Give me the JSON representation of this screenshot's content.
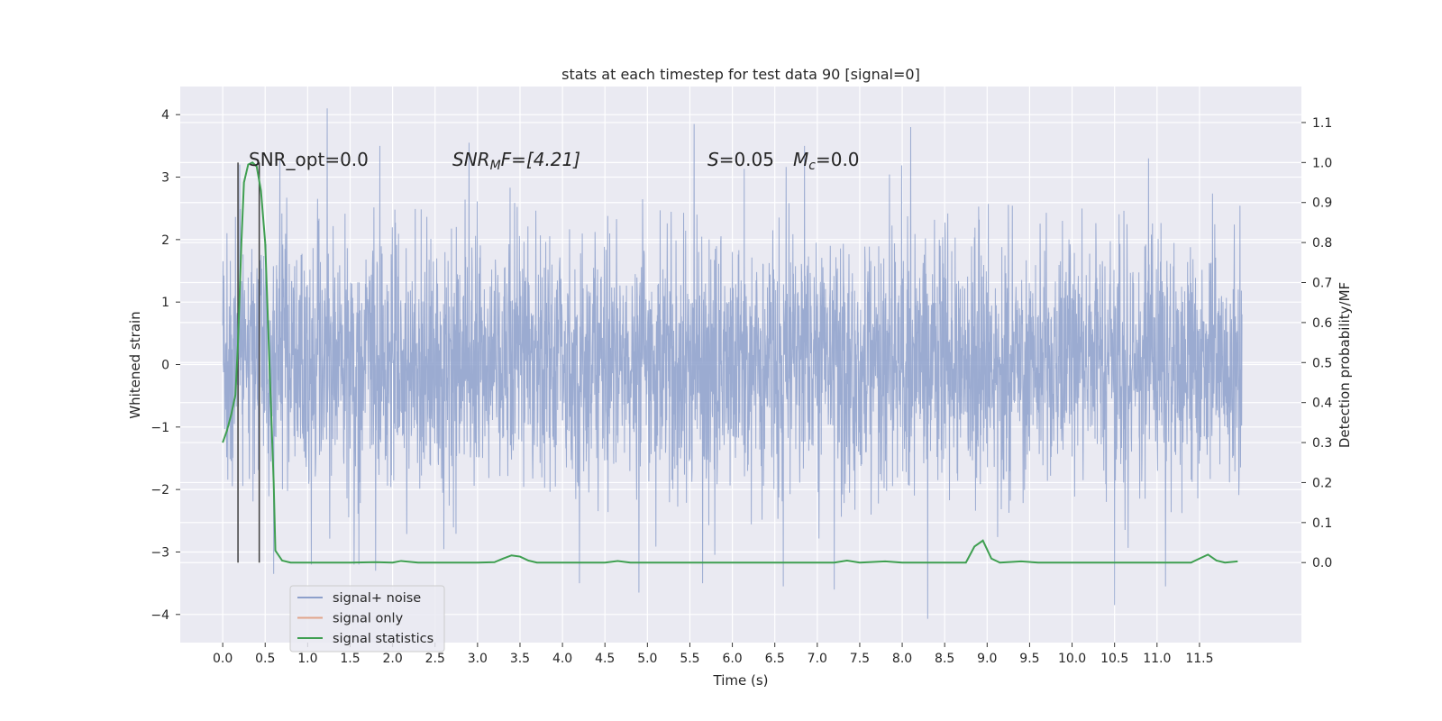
{
  "chart_data": {
    "type": "line",
    "title": "stats at each timestep for test data 90 [signal=0]",
    "xlabel": "Time (s)",
    "ylabel": "Whitened strain",
    "y2label": "Detection probability/MF",
    "xlim": [
      -0.5,
      12.7
    ],
    "ylim": [
      -4.45,
      4.45
    ],
    "y2lim": [
      -0.2,
      1.19
    ],
    "x_ticks": [
      "0.0",
      "0.5",
      "1.0",
      "1.5",
      "2.0",
      "2.5",
      "3.0",
      "3.5",
      "4.0",
      "4.5",
      "5.0",
      "5.5",
      "6.0",
      "6.5",
      "7.0",
      "7.5",
      "8.0",
      "8.5",
      "9.0",
      "9.5",
      "10.0",
      "10.5",
      "11.0",
      "11.5"
    ],
    "y_ticks": [
      "4",
      "3",
      "2",
      "1",
      "0",
      "−1",
      "−2",
      "−3",
      "−4"
    ],
    "y2_ticks": [
      "1.1",
      "1.0",
      "0.9",
      "0.8",
      "0.7",
      "0.6",
      "0.5",
      "0.4",
      "0.3",
      "0.2",
      "0.1",
      "0.0"
    ],
    "grid": true,
    "legend_position": "lower-left",
    "legend": [
      {
        "label": "signal+ noise",
        "color": "#8da0cb"
      },
      {
        "label": "signal only",
        "color": "#e1a48a"
      },
      {
        "label": "signal statistics",
        "color": "#3f9f51"
      }
    ],
    "annotations": {
      "snr_opt": "SNR_opt=0.0",
      "snr_mf_prefix": "SNR",
      "snr_mf_sub": "M",
      "snr_mf_suffix": "F=[4.21]",
      "s_prefix": "S",
      "s_value": "=0.05",
      "mc_prefix": "M",
      "mc_sub": "c",
      "mc_value": "=0.0"
    },
    "series": [
      {
        "name": "signal+ noise",
        "color": "#8da0cb",
        "t_range": [
          0.0,
          12.0
        ],
        "envelope_typical": 1.3,
        "envelope_peak_high": 4.1,
        "envelope_peak_low": -4.07,
        "spikes": [
          {
            "x": 1.23,
            "y": 4.1
          },
          {
            "x": 5.55,
            "y": 3.85
          },
          {
            "x": 8.1,
            "y": 3.8
          },
          {
            "x": 1.85,
            "y": 3.5
          },
          {
            "x": 2.9,
            "y": 3.55
          },
          {
            "x": 6.85,
            "y": 3.5
          },
          {
            "x": 10.9,
            "y": 3.3
          },
          {
            "x": 0.2,
            "y": 3.2
          },
          {
            "x": 8.3,
            "y": -4.07
          },
          {
            "x": 10.5,
            "y": -3.85
          },
          {
            "x": 11.1,
            "y": -3.55
          },
          {
            "x": 4.9,
            "y": -3.65
          },
          {
            "x": 4.2,
            "y": -3.5
          },
          {
            "x": 5.65,
            "y": -3.5
          },
          {
            "x": 6.6,
            "y": -3.55
          },
          {
            "x": 7.2,
            "y": -3.6
          },
          {
            "x": 1.8,
            "y": -3.3
          },
          {
            "x": 0.6,
            "y": -3.35
          }
        ]
      },
      {
        "name": "signal statistics",
        "color": "#3f9f51",
        "axis": "right",
        "points": [
          [
            0.0,
            0.3
          ],
          [
            0.05,
            0.33
          ],
          [
            0.1,
            0.37
          ],
          [
            0.15,
            0.42
          ],
          [
            0.18,
            0.55
          ],
          [
            0.22,
            0.8
          ],
          [
            0.25,
            0.95
          ],
          [
            0.3,
            0.995
          ],
          [
            0.35,
            1.0
          ],
          [
            0.4,
            0.99
          ],
          [
            0.45,
            0.93
          ],
          [
            0.5,
            0.8
          ],
          [
            0.55,
            0.5
          ],
          [
            0.6,
            0.2
          ],
          [
            0.62,
            0.03
          ],
          [
            0.7,
            0.005
          ],
          [
            0.8,
            0.0
          ],
          [
            1.0,
            0.0
          ],
          [
            1.5,
            0.0
          ],
          [
            1.8,
            0.001
          ],
          [
            2.0,
            0.0
          ],
          [
            2.1,
            0.004
          ],
          [
            2.3,
            0.0
          ],
          [
            3.0,
            0.0
          ],
          [
            3.2,
            0.001
          ],
          [
            3.3,
            0.01
          ],
          [
            3.4,
            0.018
          ],
          [
            3.5,
            0.015
          ],
          [
            3.6,
            0.005
          ],
          [
            3.7,
            0.0
          ],
          [
            4.5,
            0.0
          ],
          [
            4.65,
            0.004
          ],
          [
            4.8,
            0.0
          ],
          [
            7.2,
            0.0
          ],
          [
            7.35,
            0.005
          ],
          [
            7.5,
            0.0
          ],
          [
            7.8,
            0.003
          ],
          [
            8.0,
            0.0
          ],
          [
            8.75,
            0.0
          ],
          [
            8.85,
            0.04
          ],
          [
            8.95,
            0.055
          ],
          [
            9.05,
            0.01
          ],
          [
            9.15,
            0.0
          ],
          [
            9.4,
            0.003
          ],
          [
            9.6,
            0.0
          ],
          [
            11.4,
            0.0
          ],
          [
            11.5,
            0.01
          ],
          [
            11.6,
            0.02
          ],
          [
            11.7,
            0.005
          ],
          [
            11.8,
            0.0
          ],
          [
            11.95,
            0.003
          ]
        ]
      }
    ],
    "vertical_markers": [
      {
        "x": 0.18,
        "color": "#404040"
      },
      {
        "x": 0.43,
        "color": "#404040"
      }
    ]
  }
}
